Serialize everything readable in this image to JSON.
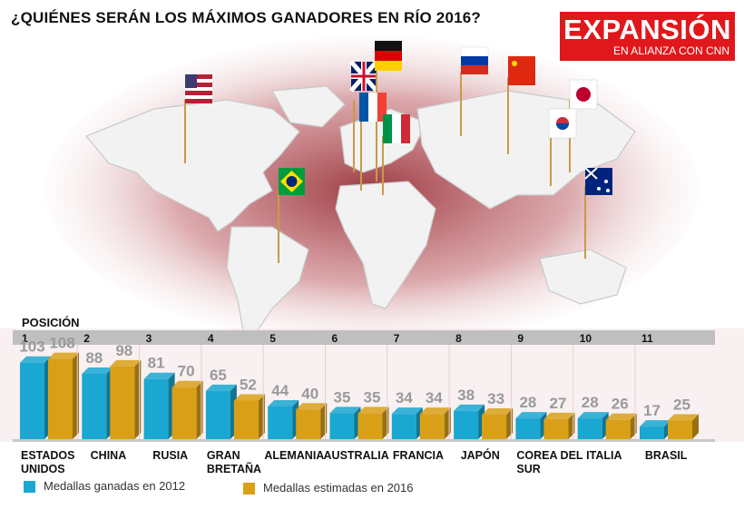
{
  "title": "¿QUIÉNES SERÁN LOS MÁXIMOS GANADORES EN RÍO 2016?",
  "logo": {
    "brand": "EXPANSIÓN",
    "tagline": "EN ALIANZA CON CNN"
  },
  "colors": {
    "series_2012": "#1aa7d2",
    "series_2016": "#d9a017",
    "accent": "#e0181b",
    "value_text": "#9a9a9a"
  },
  "chart_data": {
    "type": "bar",
    "position_label": "POSICIÓN",
    "positions": [
      "1",
      "2",
      "3",
      "4",
      "5",
      "6",
      "7",
      "8",
      "9",
      "10",
      "11"
    ],
    "categories": [
      "ESTADOS UNIDOS",
      "CHINA",
      "RUSIA",
      "GRAN BRETAÑA",
      "ALEMANIA",
      "AUSTRALIA",
      "FRANCIA",
      "JAPÓN",
      "COREA DEL SUR",
      "ITALIA",
      "BRASIL"
    ],
    "category_lines": [
      [
        "ESTADOS",
        "UNIDOS"
      ],
      [
        "CHINA"
      ],
      [
        "RUSIA"
      ],
      [
        "GRAN",
        "BRETAÑA"
      ],
      [
        "ALEMANIA"
      ],
      [
        "AUSTRALIA"
      ],
      [
        "FRANCIA"
      ],
      [
        "JAPÓN"
      ],
      [
        "COREA DEL",
        "SUR"
      ],
      [
        "ITALIA"
      ],
      [
        "BRASIL"
      ]
    ],
    "series": [
      {
        "name": "Medallas ganadas en 2012",
        "values": [
          103,
          88,
          81,
          65,
          44,
          35,
          34,
          38,
          28,
          28,
          17
        ]
      },
      {
        "name": "Medallas estimadas en 2016",
        "values": [
          108,
          98,
          70,
          52,
          40,
          35,
          34,
          33,
          27,
          26,
          25
        ]
      }
    ],
    "ylim": [
      0,
      110
    ],
    "grid": false,
    "legend_position": "bottom-left"
  },
  "flags": [
    "usa-flag-icon",
    "uk-flag-icon",
    "germany-flag-icon",
    "france-flag-icon",
    "italy-flag-icon",
    "russia-flag-icon",
    "china-flag-icon",
    "japan-flag-icon",
    "korea-flag-icon",
    "australia-flag-icon",
    "brazil-flag-icon"
  ]
}
